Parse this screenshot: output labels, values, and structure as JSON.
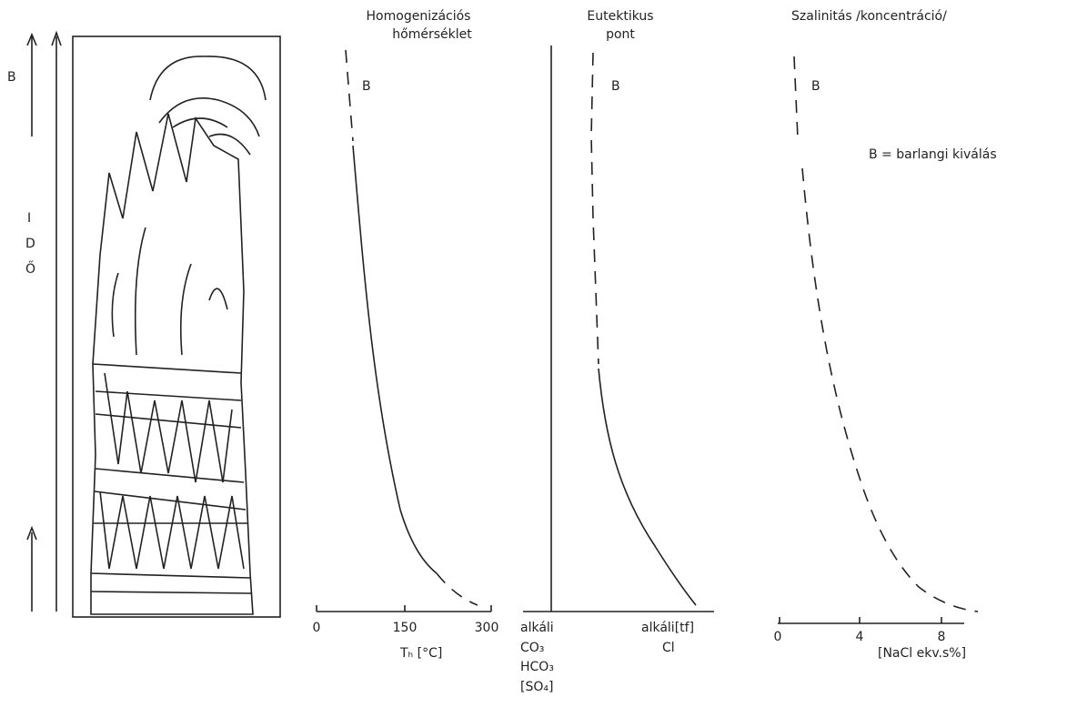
{
  "left": {
    "top_label": "B",
    "time_label": [
      "I",
      "D",
      "Ő"
    ]
  },
  "panels": [
    {
      "title": [
        "Homogenizációs",
        "hőmérséklet"
      ],
      "marker": "B",
      "ticks": [
        "0",
        "150",
        "300"
      ],
      "axis_label": "Tₕ [°C]"
    },
    {
      "title": [
        "Eutektikus",
        "pont"
      ],
      "marker": "B",
      "left_labels": [
        "alkáli",
        "CO₃",
        "HCO₃",
        "[SO₄]"
      ],
      "right_labels": [
        "alkáli[tf]",
        "Cl"
      ]
    },
    {
      "title": [
        "Szalinitás /koncentráció/"
      ],
      "marker": "B",
      "ticks": [
        "0",
        "4",
        "8"
      ],
      "axis_label": "[NaCl ekv.s%]"
    }
  ],
  "legend": "B = barlangi kiválás"
}
